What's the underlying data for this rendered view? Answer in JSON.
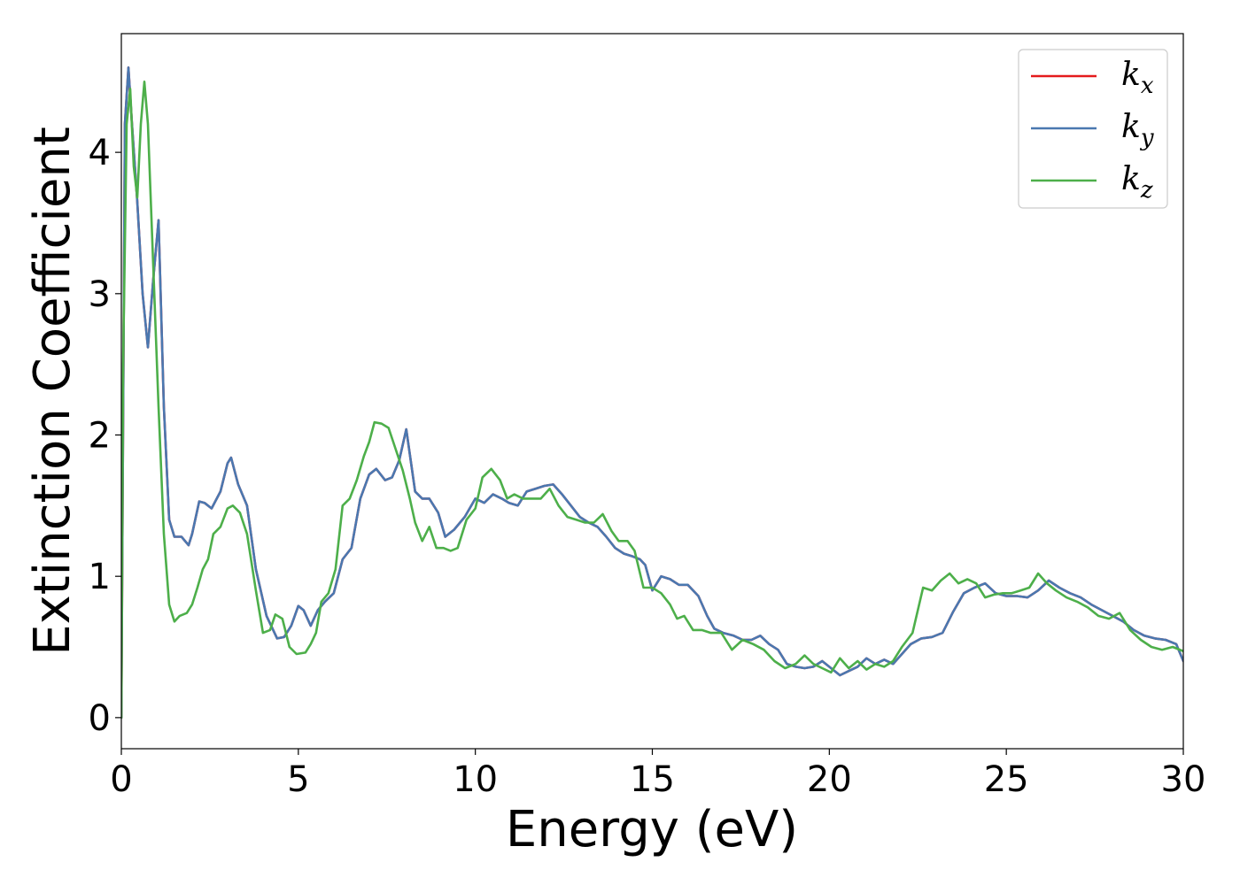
{
  "chart_data": {
    "type": "line",
    "title": "",
    "xlabel": "Energy (eV)",
    "ylabel": "Extinction Coefficient",
    "xlim": [
      0,
      30
    ],
    "ylim": [
      -0.22,
      4.84
    ],
    "xticks": [
      0,
      5,
      10,
      15,
      20,
      25,
      30
    ],
    "yticks": [
      0,
      1,
      2,
      3,
      4
    ],
    "grid": false,
    "legend_position": "top-right",
    "series": [
      {
        "name": "k_x",
        "legend_main": "k",
        "legend_sub": "x",
        "color": "#e41a1c",
        "x": [
          0,
          0.1,
          0.2,
          0.3,
          0.45,
          0.6,
          0.75,
          0.9,
          1.05,
          1.2,
          1.35,
          1.5,
          1.7,
          1.9,
          2.0,
          2.2,
          2.35,
          2.55,
          2.8,
          3.0,
          3.1,
          3.3,
          3.55,
          3.8,
          4.1,
          4.4,
          4.6,
          4.8,
          5.0,
          5.15,
          5.35,
          5.55,
          5.75,
          6.0,
          6.25,
          6.5,
          6.75,
          7.0,
          7.2,
          7.45,
          7.65,
          7.85,
          8.05,
          8.3,
          8.5,
          8.7,
          8.95,
          9.15,
          9.4,
          9.7,
          10.0,
          10.25,
          10.5,
          10.75,
          10.95,
          11.2,
          11.45,
          11.7,
          11.95,
          12.2,
          12.45,
          12.7,
          12.95,
          13.2,
          13.45,
          13.7,
          13.95,
          14.2,
          14.45,
          14.65,
          14.8,
          15.0,
          15.25,
          15.5,
          15.75,
          16.0,
          16.3,
          16.55,
          16.75,
          17.0,
          17.3,
          17.55,
          17.8,
          18.05,
          18.3,
          18.55,
          18.8,
          19.05,
          19.3,
          19.55,
          19.8,
          20.05,
          20.3,
          20.55,
          20.8,
          21.05,
          21.3,
          21.55,
          21.8,
          22.05,
          22.3,
          22.6,
          22.9,
          23.2,
          23.5,
          23.8,
          24.1,
          24.4,
          24.7,
          25.0,
          25.3,
          25.6,
          25.9,
          26.2,
          26.5,
          26.8,
          27.1,
          27.4,
          27.7,
          28.0,
          28.3,
          28.6,
          28.9,
          29.2,
          29.5,
          29.8,
          30.0
        ],
        "y": [
          0.0,
          4.2,
          4.6,
          4.2,
          3.65,
          3.0,
          2.62,
          3.1,
          3.52,
          2.2,
          1.4,
          1.28,
          1.28,
          1.22,
          1.3,
          1.53,
          1.52,
          1.48,
          1.6,
          1.8,
          1.84,
          1.65,
          1.5,
          1.05,
          0.72,
          0.56,
          0.57,
          0.65,
          0.79,
          0.76,
          0.65,
          0.76,
          0.82,
          0.88,
          1.12,
          1.2,
          1.55,
          1.72,
          1.76,
          1.68,
          1.7,
          1.82,
          2.04,
          1.6,
          1.55,
          1.55,
          1.45,
          1.28,
          1.33,
          1.42,
          1.55,
          1.52,
          1.58,
          1.55,
          1.52,
          1.5,
          1.6,
          1.62,
          1.64,
          1.65,
          1.58,
          1.5,
          1.42,
          1.38,
          1.35,
          1.28,
          1.2,
          1.16,
          1.14,
          1.12,
          1.08,
          0.9,
          1.0,
          0.98,
          0.94,
          0.94,
          0.86,
          0.72,
          0.63,
          0.6,
          0.58,
          0.55,
          0.55,
          0.58,
          0.52,
          0.48,
          0.38,
          0.36,
          0.35,
          0.36,
          0.4,
          0.35,
          0.3,
          0.33,
          0.36,
          0.42,
          0.38,
          0.41,
          0.38,
          0.45,
          0.52,
          0.56,
          0.57,
          0.6,
          0.75,
          0.88,
          0.92,
          0.95,
          0.88,
          0.86,
          0.86,
          0.85,
          0.9,
          0.97,
          0.92,
          0.88,
          0.85,
          0.8,
          0.76,
          0.72,
          0.68,
          0.62,
          0.58,
          0.56,
          0.55,
          0.52,
          0.4
        ]
      },
      {
        "name": "k_y",
        "legend_main": "k",
        "legend_sub": "y",
        "color": "#4a78b0",
        "x": [
          0,
          0.1,
          0.2,
          0.3,
          0.45,
          0.6,
          0.75,
          0.9,
          1.05,
          1.2,
          1.35,
          1.5,
          1.7,
          1.9,
          2.0,
          2.2,
          2.35,
          2.55,
          2.8,
          3.0,
          3.1,
          3.3,
          3.55,
          3.8,
          4.1,
          4.4,
          4.6,
          4.8,
          5.0,
          5.15,
          5.35,
          5.55,
          5.75,
          6.0,
          6.25,
          6.5,
          6.75,
          7.0,
          7.2,
          7.45,
          7.65,
          7.85,
          8.05,
          8.3,
          8.5,
          8.7,
          8.95,
          9.15,
          9.4,
          9.7,
          10.0,
          10.25,
          10.5,
          10.75,
          10.95,
          11.2,
          11.45,
          11.7,
          11.95,
          12.2,
          12.45,
          12.7,
          12.95,
          13.2,
          13.45,
          13.7,
          13.95,
          14.2,
          14.45,
          14.65,
          14.8,
          15.0,
          15.25,
          15.5,
          15.75,
          16.0,
          16.3,
          16.55,
          16.75,
          17.0,
          17.3,
          17.55,
          17.8,
          18.05,
          18.3,
          18.55,
          18.8,
          19.05,
          19.3,
          19.55,
          19.8,
          20.05,
          20.3,
          20.55,
          20.8,
          21.05,
          21.3,
          21.55,
          21.8,
          22.05,
          22.3,
          22.6,
          22.9,
          23.2,
          23.5,
          23.8,
          24.1,
          24.4,
          24.7,
          25.0,
          25.3,
          25.6,
          25.9,
          26.2,
          26.5,
          26.8,
          27.1,
          27.4,
          27.7,
          28.0,
          28.3,
          28.6,
          28.9,
          29.2,
          29.5,
          29.8,
          30.0
        ],
        "y": [
          0.0,
          4.2,
          4.6,
          4.2,
          3.65,
          3.0,
          2.62,
          3.1,
          3.52,
          2.2,
          1.4,
          1.28,
          1.28,
          1.22,
          1.3,
          1.53,
          1.52,
          1.48,
          1.6,
          1.8,
          1.84,
          1.65,
          1.5,
          1.05,
          0.72,
          0.56,
          0.57,
          0.65,
          0.79,
          0.76,
          0.65,
          0.76,
          0.82,
          0.88,
          1.12,
          1.2,
          1.55,
          1.72,
          1.76,
          1.68,
          1.7,
          1.82,
          2.04,
          1.6,
          1.55,
          1.55,
          1.45,
          1.28,
          1.33,
          1.42,
          1.55,
          1.52,
          1.58,
          1.55,
          1.52,
          1.5,
          1.6,
          1.62,
          1.64,
          1.65,
          1.58,
          1.5,
          1.42,
          1.38,
          1.35,
          1.28,
          1.2,
          1.16,
          1.14,
          1.12,
          1.08,
          0.9,
          1.0,
          0.98,
          0.94,
          0.94,
          0.86,
          0.72,
          0.63,
          0.6,
          0.58,
          0.55,
          0.55,
          0.58,
          0.52,
          0.48,
          0.38,
          0.36,
          0.35,
          0.36,
          0.4,
          0.35,
          0.3,
          0.33,
          0.36,
          0.42,
          0.38,
          0.41,
          0.38,
          0.45,
          0.52,
          0.56,
          0.57,
          0.6,
          0.75,
          0.88,
          0.92,
          0.95,
          0.88,
          0.86,
          0.86,
          0.85,
          0.9,
          0.97,
          0.92,
          0.88,
          0.85,
          0.8,
          0.76,
          0.72,
          0.68,
          0.62,
          0.58,
          0.56,
          0.55,
          0.52,
          0.4
        ]
      },
      {
        "name": "k_z",
        "legend_main": "k",
        "legend_sub": "z",
        "color": "#4daf4a",
        "x": [
          0,
          0.05,
          0.15,
          0.25,
          0.35,
          0.45,
          0.55,
          0.65,
          0.75,
          0.9,
          1.05,
          1.2,
          1.35,
          1.5,
          1.65,
          1.85,
          2.0,
          2.15,
          2.3,
          2.45,
          2.6,
          2.8,
          3.0,
          3.15,
          3.35,
          3.55,
          3.8,
          4.0,
          4.2,
          4.35,
          4.55,
          4.75,
          4.95,
          5.2,
          5.35,
          5.5,
          5.65,
          5.85,
          6.05,
          6.25,
          6.45,
          6.65,
          6.85,
          7.0,
          7.15,
          7.35,
          7.55,
          7.75,
          7.95,
          8.15,
          8.3,
          8.5,
          8.7,
          8.9,
          9.1,
          9.3,
          9.5,
          9.75,
          10.0,
          10.2,
          10.45,
          10.7,
          10.9,
          11.1,
          11.35,
          11.6,
          11.85,
          12.1,
          12.35,
          12.6,
          12.85,
          13.1,
          13.35,
          13.6,
          13.85,
          14.05,
          14.3,
          14.5,
          14.75,
          15.0,
          15.25,
          15.5,
          15.7,
          15.9,
          16.15,
          16.4,
          16.65,
          16.95,
          17.25,
          17.55,
          17.85,
          18.15,
          18.45,
          18.75,
          19.05,
          19.3,
          19.55,
          19.8,
          20.05,
          20.3,
          20.55,
          20.8,
          21.05,
          21.3,
          21.55,
          21.8,
          22.05,
          22.35,
          22.65,
          22.9,
          23.15,
          23.4,
          23.65,
          23.9,
          24.15,
          24.4,
          24.65,
          24.9,
          25.15,
          25.4,
          25.65,
          25.9,
          26.15,
          26.4,
          26.7,
          27.0,
          27.3,
          27.6,
          27.9,
          28.2,
          28.5,
          28.8,
          29.1,
          29.4,
          29.7,
          30.0
        ],
        "y": [
          0.0,
          2.5,
          4.2,
          4.45,
          3.9,
          3.68,
          4.2,
          4.5,
          4.2,
          3.2,
          2.2,
          1.3,
          0.8,
          0.68,
          0.72,
          0.74,
          0.8,
          0.92,
          1.05,
          1.12,
          1.3,
          1.35,
          1.48,
          1.5,
          1.45,
          1.3,
          0.9,
          0.6,
          0.62,
          0.73,
          0.7,
          0.5,
          0.45,
          0.46,
          0.52,
          0.6,
          0.82,
          0.88,
          1.05,
          1.5,
          1.55,
          1.68,
          1.85,
          1.95,
          2.09,
          2.08,
          2.05,
          1.9,
          1.75,
          1.55,
          1.38,
          1.25,
          1.35,
          1.2,
          1.2,
          1.18,
          1.2,
          1.4,
          1.48,
          1.7,
          1.76,
          1.68,
          1.55,
          1.58,
          1.55,
          1.55,
          1.55,
          1.62,
          1.5,
          1.42,
          1.4,
          1.38,
          1.38,
          1.44,
          1.32,
          1.25,
          1.25,
          1.18,
          0.92,
          0.92,
          0.88,
          0.8,
          0.7,
          0.72,
          0.62,
          0.62,
          0.6,
          0.6,
          0.48,
          0.55,
          0.52,
          0.48,
          0.4,
          0.35,
          0.38,
          0.44,
          0.38,
          0.35,
          0.32,
          0.42,
          0.35,
          0.4,
          0.34,
          0.38,
          0.36,
          0.4,
          0.5,
          0.6,
          0.92,
          0.9,
          0.97,
          1.02,
          0.95,
          0.98,
          0.95,
          0.85,
          0.87,
          0.88,
          0.88,
          0.9,
          0.92,
          1.02,
          0.95,
          0.9,
          0.85,
          0.82,
          0.78,
          0.72,
          0.7,
          0.74,
          0.62,
          0.55,
          0.5,
          0.48,
          0.5,
          0.47
        ]
      }
    ]
  }
}
